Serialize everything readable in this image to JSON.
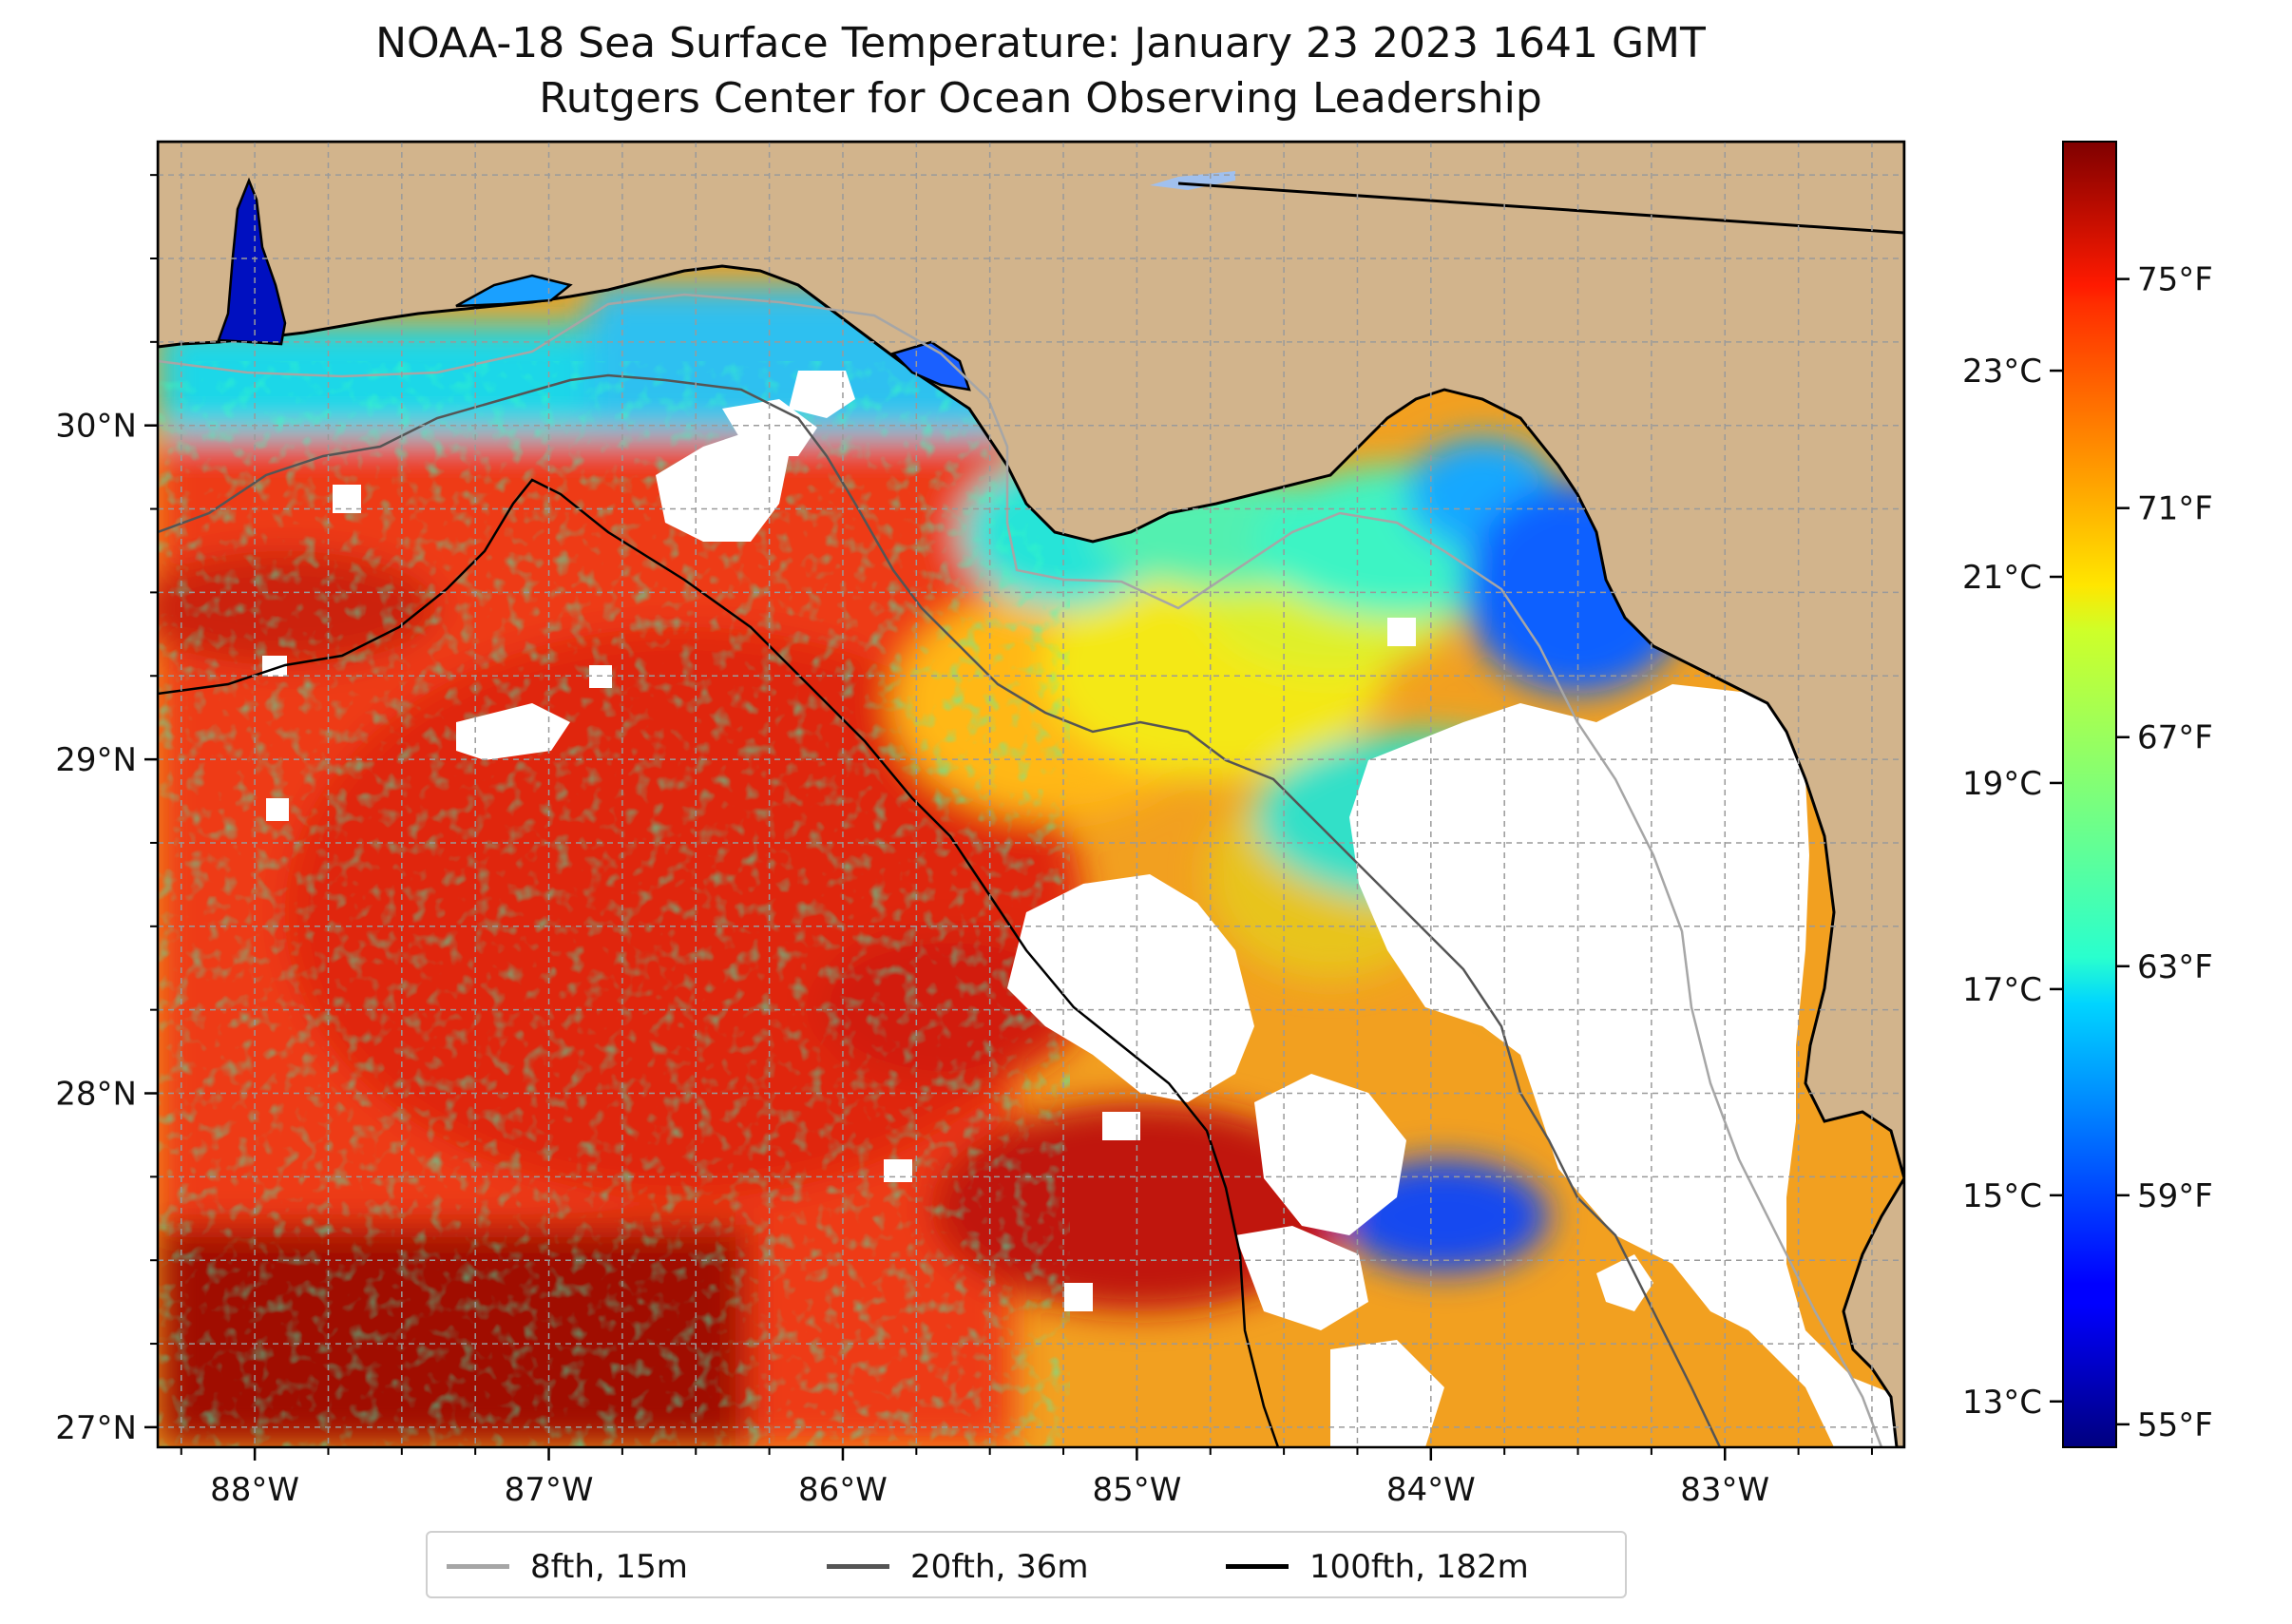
{
  "title": "NOAA-18 Sea Surface Temperature: January 23 2023 1641 GMT",
  "subtitle": "Rutgers Center for Ocean Observing Leadership",
  "map": {
    "lon_range": [
      -88.33,
      -82.39
    ],
    "lat_range": [
      26.94,
      30.85
    ],
    "lon_ticks": [
      {
        "value": -88,
        "label": "88°W"
      },
      {
        "value": -87,
        "label": "87°W"
      },
      {
        "value": -86,
        "label": "86°W"
      },
      {
        "value": -85,
        "label": "85°W"
      },
      {
        "value": -84,
        "label": "84°W"
      },
      {
        "value": -83,
        "label": "83°W"
      }
    ],
    "lat_ticks": [
      {
        "value": 27,
        "label": "27°N"
      },
      {
        "value": 28,
        "label": "28°N"
      },
      {
        "value": 29,
        "label": "29°N"
      },
      {
        "value": 30,
        "label": "30°N"
      }
    ],
    "grid": true,
    "land_color": "#d2b48c",
    "no_data_color": "#ffffff"
  },
  "colorbar": {
    "cmap": "jet",
    "range_f": [
      54.6,
      77.4
    ],
    "f_ticks": [
      {
        "value": 55,
        "label": "55°F"
      },
      {
        "value": 59,
        "label": "59°F"
      },
      {
        "value": 63,
        "label": "63°F"
      },
      {
        "value": 67,
        "label": "67°F"
      },
      {
        "value": 71,
        "label": "71°F"
      },
      {
        "value": 75,
        "label": "75°F"
      }
    ],
    "c_ticks": [
      {
        "value": 13,
        "label": "13°C"
      },
      {
        "value": 15,
        "label": "15°C"
      },
      {
        "value": 17,
        "label": "17°C"
      },
      {
        "value": 19,
        "label": "19°C"
      },
      {
        "value": 21,
        "label": "21°C"
      },
      {
        "value": 23,
        "label": "23°C"
      }
    ]
  },
  "legend": {
    "placement": "bottom-center",
    "items": [
      {
        "label": "8fth, 15m",
        "color": "#a6a6a6"
      },
      {
        "label": "20fth, 36m",
        "color": "#555555"
      },
      {
        "label": "100fth, 182m",
        "color": "#000000"
      }
    ]
  }
}
